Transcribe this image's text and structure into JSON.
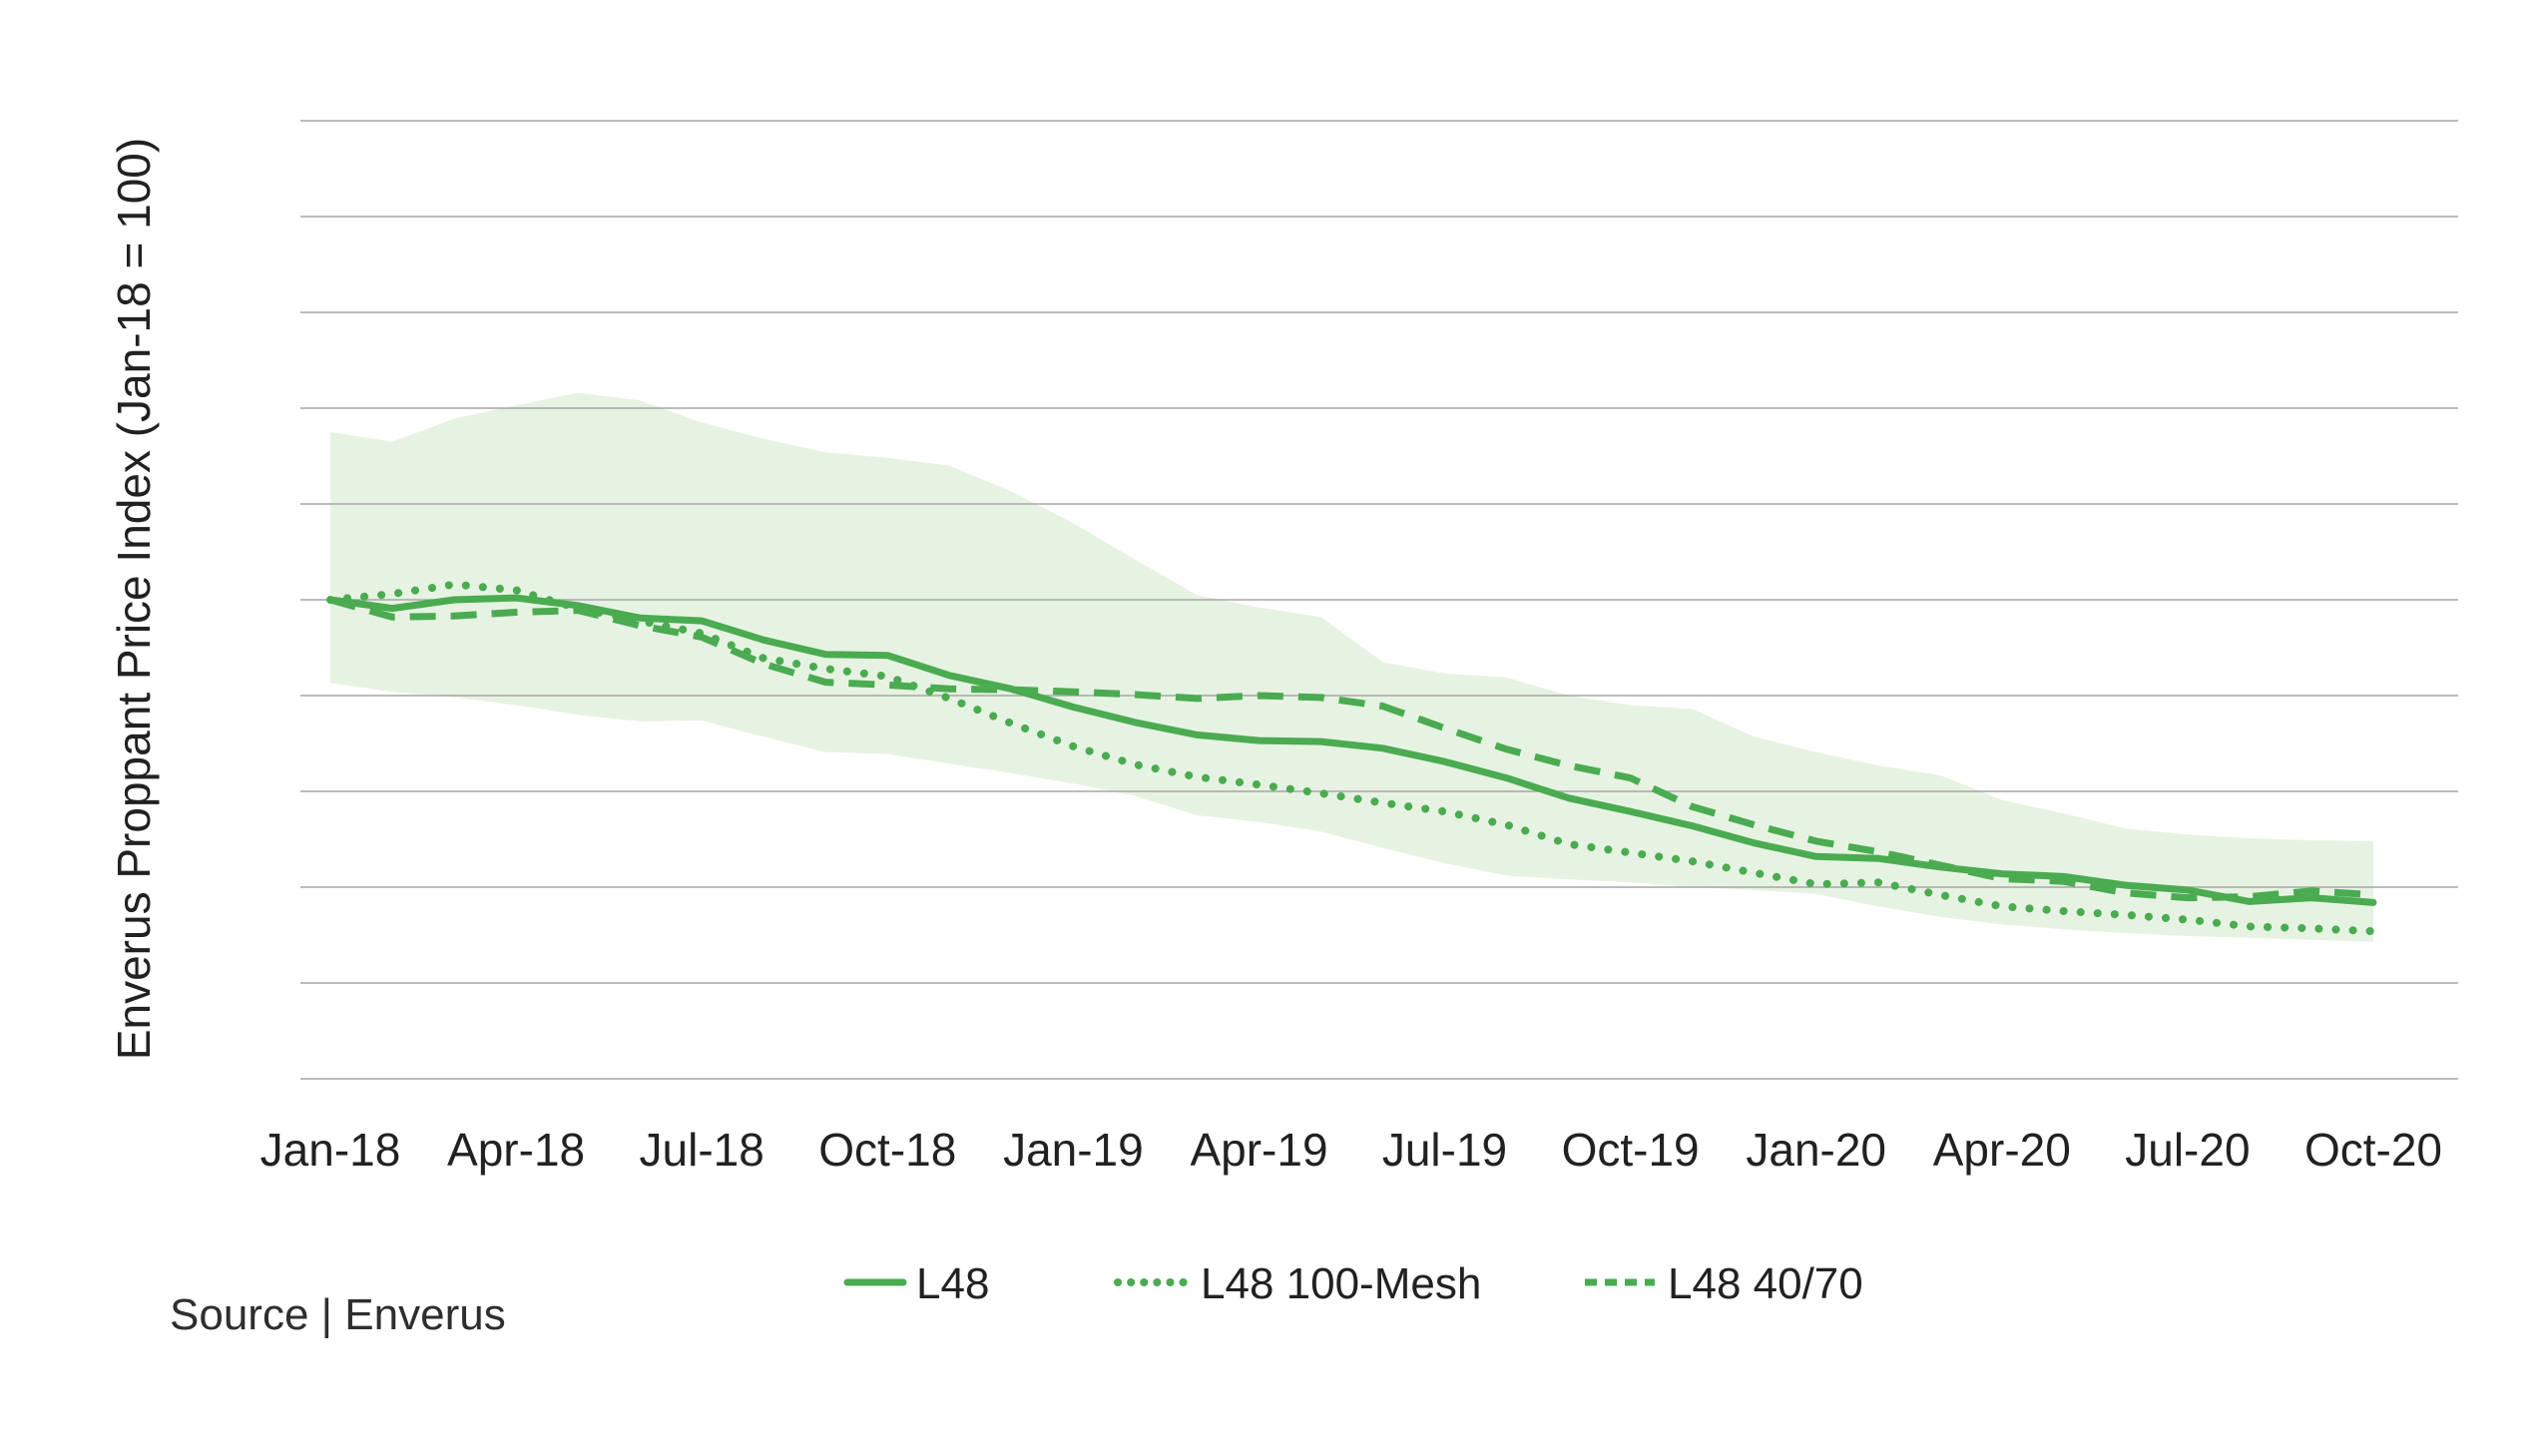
{
  "chart_data": {
    "type": "line",
    "title": "",
    "xlabel": "",
    "ylabel": "Enverus Proppant Price Index (Jan-18 = 100)",
    "ylim": [
      50,
      150
    ],
    "grid_step": 10,
    "grid": "horizontal-only",
    "legend_position": "bottom-center",
    "text_color": "#212121",
    "grid_color": "#a6a6a6",
    "months": [
      "Jan-18",
      "Feb-18",
      "Mar-18",
      "Apr-18",
      "May-18",
      "Jun-18",
      "Jul-18",
      "Aug-18",
      "Sep-18",
      "Oct-18",
      "Nov-18",
      "Dec-18",
      "Jan-19",
      "Feb-19",
      "Mar-19",
      "Apr-19",
      "May-19",
      "Jun-19",
      "Jul-19",
      "Aug-19",
      "Sep-19",
      "Oct-19",
      "Nov-19",
      "Dec-19",
      "Jan-20",
      "Feb-20",
      "Mar-20",
      "Apr-20",
      "May-20",
      "Jun-20",
      "Jul-20",
      "Aug-20",
      "Sep-20",
      "Oct-20"
    ],
    "x_tick_labels": [
      "Jan-18",
      "Apr-18",
      "Jul-18",
      "Oct-18",
      "Jan-19",
      "Apr-19",
      "Jul-19",
      "Oct-19",
      "Jan-20",
      "Apr-20",
      "Jul-20",
      "Oct-20"
    ],
    "x_tick_every_months": 3,
    "series": [
      {
        "name": "L48",
        "style": "solid",
        "color": "#4aab51",
        "values": [
          100,
          99.1,
          100,
          100.2,
          99.4,
          98.1,
          97.8,
          95.8,
          94.3,
          94.2,
          92.1,
          90.7,
          88.8,
          87.2,
          85.9,
          85.3,
          85.2,
          84.5,
          83.1,
          81.4,
          79.3,
          77.9,
          76.4,
          74.6,
          73.2,
          73.0,
          72.1,
          71.4,
          71.1,
          70.2,
          69.7,
          68.5,
          68.9,
          68.4
        ]
      },
      {
        "name": "L48 100-Mesh",
        "style": "dotted",
        "color": "#4aab51",
        "values": [
          100,
          100.6,
          101.6,
          101.0,
          99.1,
          97.8,
          96.5,
          93.9,
          92.8,
          92.0,
          89.7,
          87.1,
          84.7,
          82.8,
          81.5,
          80.7,
          79.8,
          78.8,
          77.9,
          76.5,
          74.5,
          73.6,
          72.7,
          71.5,
          70.3,
          70.5,
          69.2,
          68.0,
          67.5,
          67.1,
          66.6,
          65.9,
          65.7,
          65.4
        ]
      },
      {
        "name": "L48 40/70",
        "style": "dashed",
        "color": "#4aab51",
        "values": [
          100,
          98.2,
          98.3,
          98.7,
          98.9,
          97.3,
          96.1,
          93.3,
          91.4,
          91.1,
          90.7,
          90.6,
          90.4,
          90.1,
          89.7,
          90.0,
          89.8,
          88.9,
          86.6,
          84.4,
          82.7,
          81.4,
          78.4,
          76.5,
          74.8,
          73.7,
          72.3,
          70.9,
          70.6,
          69.4,
          68.9,
          69.0,
          69.6,
          69.2
        ]
      }
    ],
    "band": {
      "name": "min-max shaded range",
      "fill": "#e7f3e2",
      "top": [
        117.5,
        116.5,
        118.9,
        120.3,
        121.6,
        120.8,
        118.5,
        116.8,
        115.4,
        114.8,
        114.0,
        111.3,
        108.0,
        104.2,
        100.5,
        99.2,
        98.2,
        93.5,
        92.3,
        91.9,
        90.0,
        89.0,
        88.6,
        85.7,
        84.1,
        82.7,
        81.7,
        79.1,
        77.7,
        76.1,
        75.5,
        75.1,
        74.9,
        74.8
      ],
      "bottom": [
        91.3,
        90.4,
        89.8,
        89.0,
        88.0,
        87.3,
        87.4,
        85.7,
        84.1,
        83.9,
        82.9,
        81.9,
        80.8,
        79.5,
        77.5,
        76.8,
        75.8,
        74.1,
        72.5,
        71.2,
        70.8,
        70.5,
        70.0,
        69.7,
        69.3,
        68.0,
        66.9,
        66.1,
        65.6,
        65.2,
        64.9,
        64.7,
        64.5,
        64.3
      ]
    }
  },
  "footer": {
    "source": "Source | Enverus"
  }
}
